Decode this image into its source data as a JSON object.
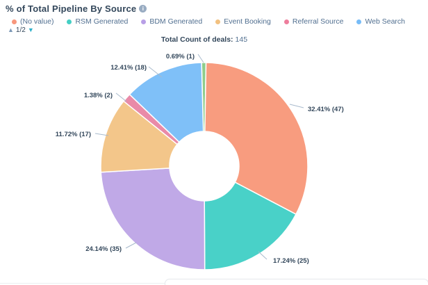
{
  "header": {
    "title": "% of Total Pipeline By Source"
  },
  "legend": {
    "items": [
      {
        "label": "(No value)",
        "color": "#F8977C"
      },
      {
        "label": "RSM Generated",
        "color": "#45CFC4"
      },
      {
        "label": "BDM Generated",
        "color": "#B89FE6"
      },
      {
        "label": "Event Booking",
        "color": "#F2C180"
      },
      {
        "label": "Referral Source",
        "color": "#EE7E9D"
      },
      {
        "label": "Web Search",
        "color": "#77BCF7"
      }
    ],
    "pagination": {
      "current": "1/2",
      "up_color": "#7C98B6",
      "down_color": "#2BAFC9"
    }
  },
  "subtitle": {
    "label": "Total Count of deals:",
    "value": "145"
  },
  "chart_data": {
    "type": "pie",
    "subtype": "donut",
    "title": "% of Total Pipeline By Source",
    "legend_position": "top",
    "total": 145,
    "total_label": "Total Count of deals: 145",
    "slices": [
      {
        "name": "",
        "value": 1,
        "percent": 0.69,
        "label": "0.69% (1)",
        "color": "#8FCD8C"
      },
      {
        "name": "(No value)",
        "value": 47,
        "percent": 32.41,
        "label": "32.41% (47)",
        "color": "#F89C7F"
      },
      {
        "name": "RSM Generated",
        "value": 25,
        "percent": 17.24,
        "label": "17.24% (25)",
        "color": "#49D1C8"
      },
      {
        "name": "BDM Generated",
        "value": 35,
        "percent": 24.14,
        "label": "24.14% (35)",
        "color": "#C0A9E7"
      },
      {
        "name": "Event Booking",
        "value": 17,
        "percent": 11.72,
        "label": "11.72% (17)",
        "color": "#F3C68A"
      },
      {
        "name": "Referral Source",
        "value": 2,
        "percent": 1.38,
        "label": "1.38% (2)",
        "color": "#E98AA8"
      },
      {
        "name": "Web Search",
        "value": 18,
        "percent": 12.41,
        "label": "12.41% (18)",
        "color": "#7FC0F8"
      }
    ]
  }
}
